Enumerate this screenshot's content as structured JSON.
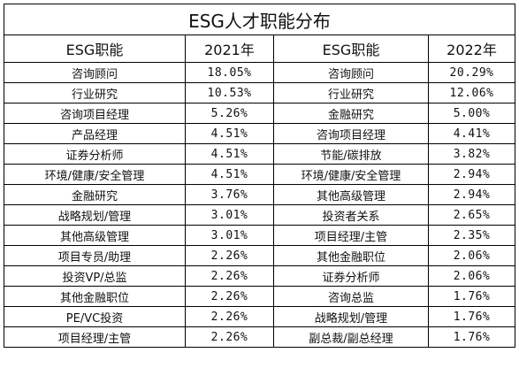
{
  "title": "ESG人才职能分布",
  "headers": [
    "ESG职能",
    "2021年",
    "ESG职能",
    "2022年"
  ],
  "rows": [
    [
      "咨询顾问",
      "18.05%",
      "咨询顾问",
      "20.29%"
    ],
    [
      "行业研究",
      "10.53%",
      "行业研究",
      "12.06%"
    ],
    [
      "咨询项目经理",
      "5.26%",
      "金融研究",
      "5.00%"
    ],
    [
      "产品经理",
      "4.51%",
      "咨询项目经理",
      "4.41%"
    ],
    [
      "证券分析师",
      "4.51%",
      "节能/碳排放",
      "3.82%"
    ],
    [
      "环境/健康/安全管理",
      "4.51%",
      "环境/健康/安全管理",
      "2.94%"
    ],
    [
      "金融研究",
      "3.76%",
      "其他高级管理",
      "2.94%"
    ],
    [
      "战略规划/管理",
      "3.01%",
      "投资者关系",
      "2.65%"
    ],
    [
      "其他高级管理",
      "3.01%",
      "项目经理/主管",
      "2.35%"
    ],
    [
      "项目专员/助理",
      "2.26%",
      "其他金融职位",
      "2.06%"
    ],
    [
      "投资VP/总监",
      "2.26%",
      "证券分析师",
      "2.06%"
    ],
    [
      "其他金融职位",
      "2.26%",
      "咨询总监",
      "1.76%"
    ],
    [
      "PE/VC投资",
      "2.26%",
      "战略规划/管理",
      "1.76%"
    ],
    [
      "项目经理/主管",
      "2.26%",
      "副总裁/副总经理",
      "1.76%"
    ]
  ]
}
